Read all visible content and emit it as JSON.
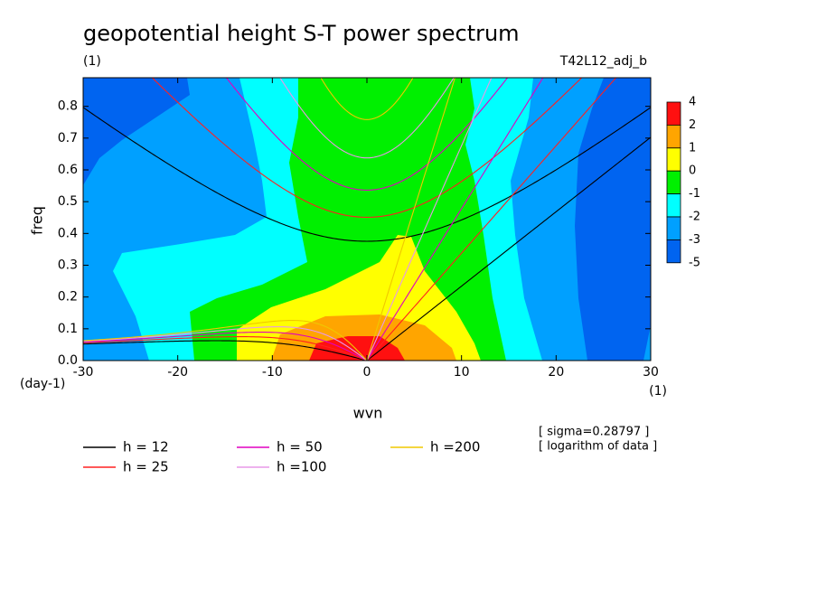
{
  "chart_data": {
    "type": "contour",
    "title": "geopotential height S-T power spectrum",
    "subtitle": "(1)",
    "run_label": "T42L12_adj_b",
    "xlabel": "wvn",
    "xunit": "(1)",
    "ylabel": "freq",
    "yunit": "(day-1)",
    "xlim": [
      -30,
      30
    ],
    "xticks": [
      -30,
      -20,
      -10,
      0,
      10,
      20,
      30
    ],
    "ylim": [
      0,
      0.89
    ],
    "yticks": [
      {
        "value": 0,
        "label": "0.0"
      },
      {
        "value": 0.1,
        "label": "0.1"
      },
      {
        "value": 0.2,
        "label": "0.2"
      },
      {
        "value": 0.3,
        "label": "0.3"
      },
      {
        "value": 0.4,
        "label": "0.4"
      },
      {
        "value": 0.5,
        "label": "0.5"
      },
      {
        "value": 0.6,
        "label": "0.6"
      },
      {
        "value": 0.7,
        "label": "0.7"
      },
      {
        "value": 0.8,
        "label": "0.8"
      }
    ],
    "colorbar": {
      "levels": [
        4,
        2,
        1,
        0,
        -1,
        -2,
        -3,
        -5
      ],
      "colors": [
        "#ff1010",
        "#ffa500",
        "#ffff00",
        "#00f000",
        "#00ffff",
        "#00a0ff",
        "#0064f0"
      ]
    },
    "series": [
      {
        "name": "h = 12",
        "h": 12,
        "color": "#000000"
      },
      {
        "name": "h = 25",
        "h": 25,
        "color": "#ff2020"
      },
      {
        "name": "h = 50",
        "h": 50,
        "color": "#e000c0"
      },
      {
        "name": "h =100",
        "h": 100,
        "color": "#e898e8"
      },
      {
        "name": "h =200",
        "h": 200,
        "color": "#f0c800"
      }
    ],
    "notes": [
      "[ sigma=0.28797 ]",
      "[ logarithm of data ]"
    ]
  }
}
